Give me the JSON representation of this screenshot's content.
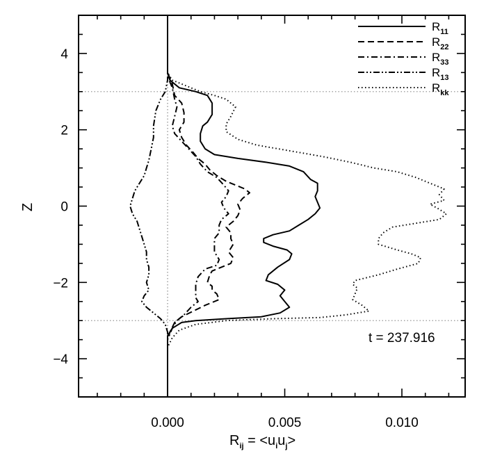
{
  "chart_data": {
    "type": "line",
    "xlabel": "R",
    "xlabel_sub": "ij",
    "xlabel_rhs": " = <u",
    "xlabel_sub2": "i",
    "xlabel_mid": "u",
    "xlabel_sub3": "j",
    "xlabel_end": ">",
    "ylabel": "Z",
    "xlim": [
      -0.0038,
      0.0127
    ],
    "ylim": [
      -5,
      5
    ],
    "x_ticks": [
      {
        "value": 0.0,
        "label": "0.000"
      },
      {
        "value": 0.005,
        "label": "0.005"
      },
      {
        "value": 0.01,
        "label": "0.010"
      }
    ],
    "y_ticks": [
      {
        "value": 4,
        "label": "4"
      },
      {
        "value": 2,
        "label": "2"
      },
      {
        "value": 0,
        "label": "0"
      },
      {
        "value": -2,
        "label": "−2"
      },
      {
        "value": -4,
        "label": "−4"
      }
    ],
    "reference_lines": {
      "horizontal": [
        3,
        -3
      ],
      "vertical": [
        0
      ]
    },
    "annotation": "t = 237.916",
    "legend_position": "top-right",
    "series": [
      {
        "name": "R",
        "sub": "11",
        "dash": "solid",
        "points": [
          [
            0,
            5
          ],
          [
            0,
            3.5
          ],
          [
            0.0001,
            3.3
          ],
          [
            0.0005,
            3.1
          ],
          [
            0.0012,
            3.0
          ],
          [
            0.0017,
            2.9
          ],
          [
            0.0019,
            2.7
          ],
          [
            0.0019,
            2.4
          ],
          [
            0.0017,
            2.2
          ],
          [
            0.0015,
            2.1
          ],
          [
            0.0014,
            1.9
          ],
          [
            0.0014,
            1.7
          ],
          [
            0.0016,
            1.5
          ],
          [
            0.002,
            1.35
          ],
          [
            0.003,
            1.25
          ],
          [
            0.0042,
            1.15
          ],
          [
            0.0052,
            1.05
          ],
          [
            0.0058,
            0.9
          ],
          [
            0.0061,
            0.7
          ],
          [
            0.0064,
            0.6
          ],
          [
            0.0064,
            0.4
          ],
          [
            0.0063,
            0.25
          ],
          [
            0.0064,
            0.1
          ],
          [
            0.0065,
            -0.05
          ],
          [
            0.0063,
            -0.2
          ],
          [
            0.006,
            -0.35
          ],
          [
            0.0056,
            -0.5
          ],
          [
            0.0052,
            -0.65
          ],
          [
            0.0045,
            -0.75
          ],
          [
            0.0041,
            -0.85
          ],
          [
            0.0041,
            -0.95
          ],
          [
            0.0045,
            -1.05
          ],
          [
            0.0051,
            -1.15
          ],
          [
            0.0053,
            -1.25
          ],
          [
            0.0052,
            -1.4
          ],
          [
            0.0047,
            -1.6
          ],
          [
            0.0043,
            -1.8
          ],
          [
            0.0042,
            -1.95
          ],
          [
            0.0047,
            -2.05
          ],
          [
            0.005,
            -2.2
          ],
          [
            0.0048,
            -2.35
          ],
          [
            0.005,
            -2.5
          ],
          [
            0.0052,
            -2.65
          ],
          [
            0.0048,
            -2.8
          ],
          [
            0.004,
            -2.9
          ],
          [
            0.0025,
            -2.95
          ],
          [
            0.0012,
            -3.0
          ],
          [
            0.0006,
            -3.05
          ],
          [
            0.0002,
            -3.2
          ],
          [
            0,
            -3.4
          ],
          [
            0,
            -5
          ]
        ]
      },
      {
        "name": "R",
        "sub": "22",
        "dash": "dashed",
        "points": [
          [
            0,
            5
          ],
          [
            0,
            3.5
          ],
          [
            0.0002,
            3.2
          ],
          [
            0.0003,
            2.9
          ],
          [
            0.0006,
            2.7
          ],
          [
            0.0007,
            2.45
          ],
          [
            0.0007,
            2.2
          ],
          [
            0.0005,
            2.0
          ],
          [
            0.0006,
            1.8
          ],
          [
            0.0008,
            1.6
          ],
          [
            0.0011,
            1.4
          ],
          [
            0.0013,
            1.25
          ],
          [
            0.0016,
            1.1
          ],
          [
            0.0018,
            0.95
          ],
          [
            0.0021,
            0.8
          ],
          [
            0.0025,
            0.65
          ],
          [
            0.0029,
            0.55
          ],
          [
            0.0033,
            0.45
          ],
          [
            0.0035,
            0.35
          ],
          [
            0.0032,
            0.2
          ],
          [
            0.003,
            0.05
          ],
          [
            0.0031,
            -0.1
          ],
          [
            0.003,
            -0.25
          ],
          [
            0.0028,
            -0.4
          ],
          [
            0.0025,
            -0.55
          ],
          [
            0.0027,
            -0.7
          ],
          [
            0.0027,
            -0.85
          ],
          [
            0.0028,
            -1.0
          ],
          [
            0.0026,
            -1.2
          ],
          [
            0.0028,
            -1.35
          ],
          [
            0.0027,
            -1.5
          ],
          [
            0.0023,
            -1.6
          ],
          [
            0.0019,
            -1.7
          ],
          [
            0.0018,
            -1.8
          ],
          [
            0.0017,
            -2.0
          ],
          [
            0.0019,
            -2.1
          ],
          [
            0.0019,
            -2.2
          ],
          [
            0.0021,
            -2.3
          ],
          [
            0.0022,
            -2.45
          ],
          [
            0.0016,
            -2.6
          ],
          [
            0.0011,
            -2.75
          ],
          [
            0.0006,
            -2.9
          ],
          [
            0.0003,
            -3.05
          ],
          [
            0.0001,
            -3.3
          ],
          [
            0,
            -3.5
          ],
          [
            0,
            -5
          ]
        ]
      },
      {
        "name": "R",
        "sub": "33",
        "dash": "dashdot",
        "points": [
          [
            0,
            5
          ],
          [
            0,
            3.4
          ],
          [
            0.0002,
            3.1
          ],
          [
            0.0003,
            2.8
          ],
          [
            0.0004,
            2.6
          ],
          [
            0.0003,
            2.35
          ],
          [
            0.0002,
            2.1
          ],
          [
            0.0003,
            1.9
          ],
          [
            0.0006,
            1.7
          ],
          [
            0.0009,
            1.5
          ],
          [
            0.0012,
            1.3
          ],
          [
            0.0014,
            1.1
          ],
          [
            0.0017,
            0.9
          ],
          [
            0.0021,
            0.75
          ],
          [
            0.0024,
            0.55
          ],
          [
            0.0026,
            0.4
          ],
          [
            0.0025,
            0.25
          ],
          [
            0.0023,
            0.1
          ],
          [
            0.0024,
            -0.05
          ],
          [
            0.0026,
            -0.2
          ],
          [
            0.0023,
            -0.35
          ],
          [
            0.0022,
            -0.5
          ],
          [
            0.0022,
            -0.7
          ],
          [
            0.002,
            -0.85
          ],
          [
            0.002,
            -1.0
          ],
          [
            0.002,
            -1.2
          ],
          [
            0.0022,
            -1.4
          ],
          [
            0.0021,
            -1.55
          ],
          [
            0.0016,
            -1.65
          ],
          [
            0.0013,
            -1.85
          ],
          [
            0.0012,
            -2.05
          ],
          [
            0.0012,
            -2.2
          ],
          [
            0.0012,
            -2.4
          ],
          [
            0.0013,
            -2.5
          ],
          [
            0.001,
            -2.65
          ],
          [
            0.0007,
            -2.85
          ],
          [
            0.0004,
            -3.0
          ],
          [
            0.0002,
            -3.2
          ],
          [
            0,
            -3.5
          ],
          [
            0,
            -5
          ]
        ]
      },
      {
        "name": "R",
        "sub": "13",
        "dash": "dashdotdot",
        "points": [
          [
            0,
            5
          ],
          [
            0,
            3.3
          ],
          [
            -0.0001,
            3.0
          ],
          [
            -0.0003,
            2.8
          ],
          [
            -0.0005,
            2.5
          ],
          [
            -0.0006,
            2.1
          ],
          [
            -0.0006,
            1.8
          ],
          [
            -0.0007,
            1.5
          ],
          [
            -0.0008,
            1.2
          ],
          [
            -0.0009,
            1.0
          ],
          [
            -0.001,
            0.8
          ],
          [
            -0.0012,
            0.6
          ],
          [
            -0.0014,
            0.4
          ],
          [
            -0.0015,
            0.2
          ],
          [
            -0.0016,
            0.0
          ],
          [
            -0.0015,
            -0.2
          ],
          [
            -0.0013,
            -0.4
          ],
          [
            -0.0012,
            -0.6
          ],
          [
            -0.0011,
            -0.8
          ],
          [
            -0.001,
            -1.0
          ],
          [
            -0.0009,
            -1.2
          ],
          [
            -0.0009,
            -1.4
          ],
          [
            -0.0008,
            -1.6
          ],
          [
            -0.0008,
            -1.8
          ],
          [
            -0.0009,
            -2.0
          ],
          [
            -0.0008,
            -2.2
          ],
          [
            -0.001,
            -2.35
          ],
          [
            -0.0011,
            -2.5
          ],
          [
            -0.0009,
            -2.65
          ],
          [
            -0.0006,
            -2.8
          ],
          [
            -0.0003,
            -2.95
          ],
          [
            -0.0001,
            -3.1
          ],
          [
            0,
            -3.3
          ],
          [
            0,
            -5
          ]
        ]
      },
      {
        "name": "R",
        "sub": "kk",
        "dash": "dotted",
        "points": [
          [
            0,
            5
          ],
          [
            0,
            3.5
          ],
          [
            0.0002,
            3.3
          ],
          [
            0.0008,
            3.15
          ],
          [
            0.0014,
            3.0
          ],
          [
            0.002,
            2.9
          ],
          [
            0.0025,
            2.8
          ],
          [
            0.0029,
            2.6
          ],
          [
            0.0027,
            2.35
          ],
          [
            0.0025,
            2.15
          ],
          [
            0.0025,
            1.95
          ],
          [
            0.003,
            1.75
          ],
          [
            0.0038,
            1.6
          ],
          [
            0.0052,
            1.45
          ],
          [
            0.0066,
            1.3
          ],
          [
            0.0078,
            1.15
          ],
          [
            0.0088,
            1.0
          ],
          [
            0.0098,
            0.9
          ],
          [
            0.0106,
            0.75
          ],
          [
            0.0112,
            0.6
          ],
          [
            0.0118,
            0.45
          ],
          [
            0.0116,
            0.3
          ],
          [
            0.0118,
            0.15
          ],
          [
            0.0112,
            0.05
          ],
          [
            0.0115,
            -0.05
          ],
          [
            0.0119,
            -0.2
          ],
          [
            0.0116,
            -0.35
          ],
          [
            0.0106,
            -0.45
          ],
          [
            0.0096,
            -0.55
          ],
          [
            0.0092,
            -0.7
          ],
          [
            0.009,
            -0.85
          ],
          [
            0.009,
            -1.0
          ],
          [
            0.0098,
            -1.15
          ],
          [
            0.0104,
            -1.25
          ],
          [
            0.0108,
            -1.35
          ],
          [
            0.0107,
            -1.5
          ],
          [
            0.0098,
            -1.65
          ],
          [
            0.009,
            -1.8
          ],
          [
            0.008,
            -1.95
          ],
          [
            0.0079,
            -2.05
          ],
          [
            0.0081,
            -2.15
          ],
          [
            0.008,
            -2.3
          ],
          [
            0.0079,
            -2.45
          ],
          [
            0.0083,
            -2.6
          ],
          [
            0.0086,
            -2.75
          ],
          [
            0.0076,
            -2.85
          ],
          [
            0.0065,
            -2.92
          ],
          [
            0.0045,
            -2.95
          ],
          [
            0.0025,
            -3.0
          ],
          [
            0.0012,
            -3.1
          ],
          [
            0.0005,
            -3.25
          ],
          [
            0.0002,
            -3.45
          ],
          [
            0,
            -3.7
          ],
          [
            0,
            -5
          ]
        ]
      }
    ]
  }
}
